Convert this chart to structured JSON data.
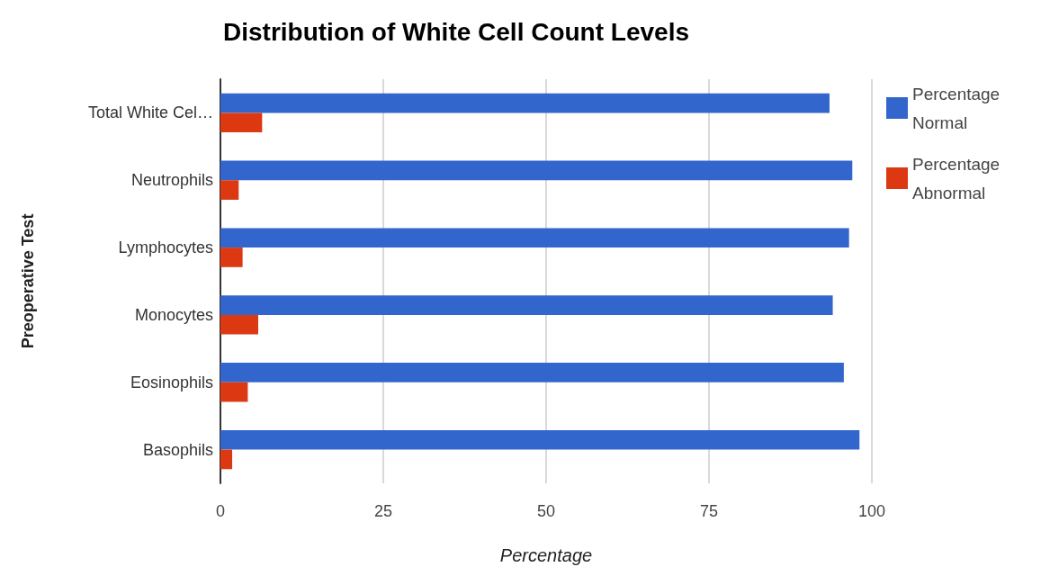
{
  "chart_data": {
    "type": "bar",
    "orientation": "horizontal",
    "title": "Distribution of White Cell Count Levels",
    "xlabel": "Percentage",
    "ylabel": "Preoperative Test",
    "categories": [
      "Total White Cel…",
      "Neutrophils",
      "Lymphocytes",
      "Monocytes",
      "Eosinophils",
      "Basophils"
    ],
    "series": [
      {
        "name": "Percentage Normal",
        "color": "#3366cc",
        "values": [
          93.5,
          97.0,
          96.5,
          94.0,
          95.7,
          98.1
        ]
      },
      {
        "name": "Percentage Abnormal",
        "color": "#dc3912",
        "values": [
          6.4,
          2.8,
          3.4,
          5.8,
          4.2,
          1.8
        ]
      }
    ],
    "xlim": [
      0,
      100
    ],
    "xticks": [
      0,
      25,
      50,
      75,
      100
    ],
    "grid": "x",
    "legend": "top right"
  }
}
